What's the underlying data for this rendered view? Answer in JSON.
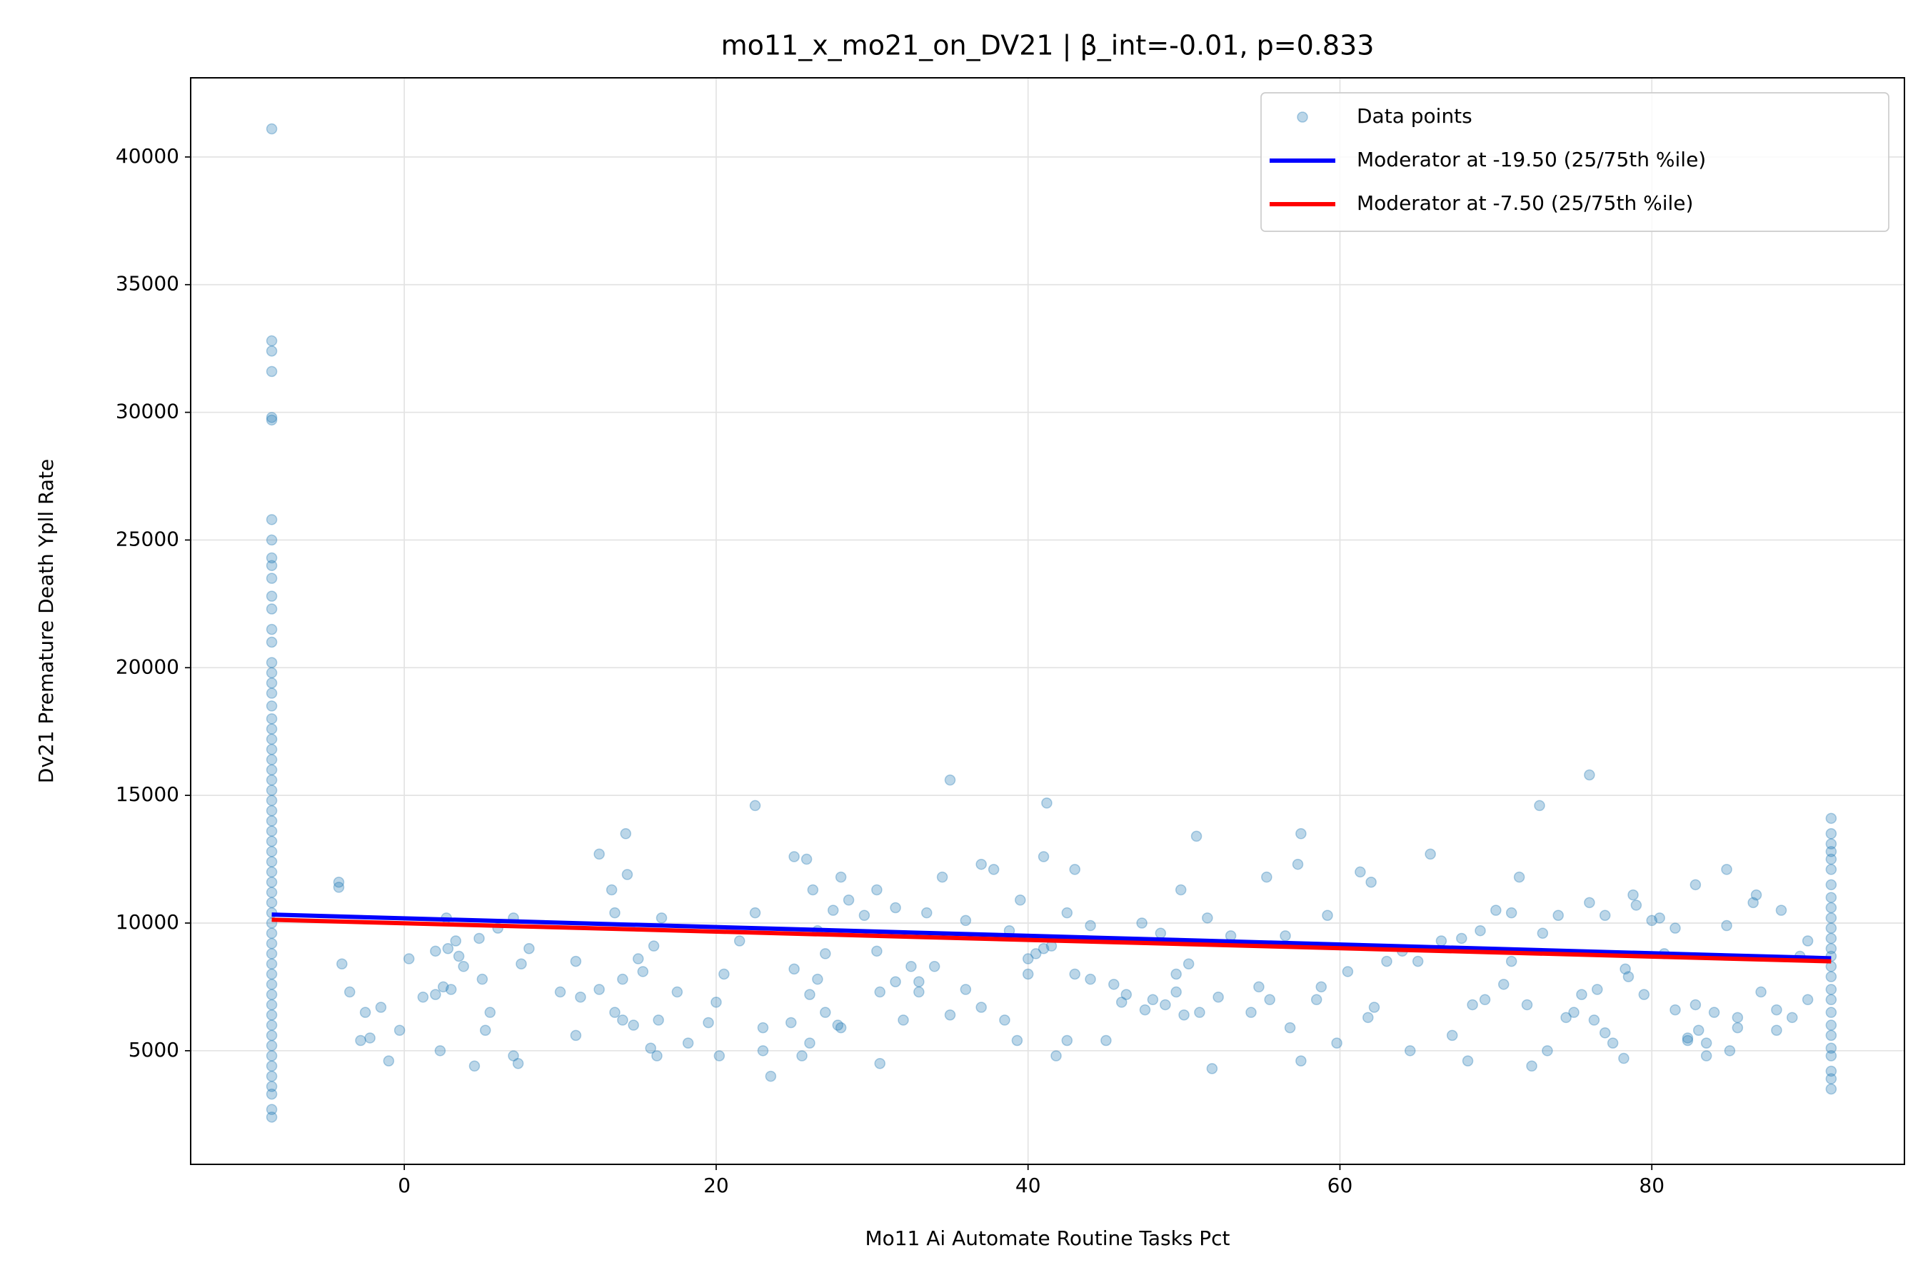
{
  "chart_data": {
    "type": "scatter",
    "title": "mo11_x_mo21_on_DV21 | β_int=-0.01, p=0.833",
    "x_label": "Mo11 Ai Automate Routine Tasks Pct",
    "y_label": "Dv21 Premature Death Ypll Rate",
    "xlim": [
      -13.7,
      96.2
    ],
    "ylim": [
      550,
      43100
    ],
    "xticks": [
      0,
      20,
      40,
      60,
      80
    ],
    "yticks": [
      5000,
      10000,
      15000,
      20000,
      25000,
      30000,
      35000,
      40000
    ],
    "grid": true,
    "legend": "upper right",
    "series": [
      {
        "name": "Data points",
        "type": "scatter",
        "color": "#1f77b4",
        "x": [
          -8.5,
          -8.5,
          -8.5,
          -8.5,
          -8.5,
          -8.5,
          -8.5,
          -8.5,
          -8.5,
          -8.5,
          -8.5,
          -8.5,
          -8.5,
          -8.5,
          -8.5,
          -8.5,
          -8.5,
          -8.5,
          -8.5,
          -8.5,
          -8.5,
          -8.5,
          -8.5,
          -8.5,
          -8.5,
          -8.5,
          -8.5,
          -8.5,
          -8.5,
          -8.5,
          -8.5,
          -8.5,
          -8.5,
          -8.5,
          -8.5,
          -8.5,
          -8.5,
          -8.5,
          -8.5,
          -8.5,
          -8.5,
          -8.5,
          -8.5,
          -8.5,
          -8.5,
          -8.5,
          -8.5,
          -8.5,
          -8.5,
          -8.5,
          -8.5,
          -8.5,
          -8.5,
          -8.5,
          -8.5,
          -8.5,
          -8.5,
          -8.5,
          -8.5,
          -8.5,
          -4.2,
          -4.2,
          -4,
          -3.5,
          -2.8,
          -2.5,
          -2.2,
          -1.5,
          -1,
          -0.3,
          0.3,
          1.2,
          2,
          2,
          2.3,
          2.5,
          2.7,
          2.8,
          3,
          3.3,
          3.5,
          3.8,
          4.5,
          4.8,
          5,
          5.2,
          5.5,
          6,
          7,
          7,
          7.3,
          7.5,
          8,
          10,
          11,
          11,
          11.3,
          12.5,
          12.5,
          13.3,
          13.5,
          13.5,
          14,
          14,
          14.2,
          14.3,
          14.7,
          15,
          15.3,
          15.8,
          16,
          16.2,
          16.3,
          16.5,
          17.5,
          18.2,
          19.5,
          20,
          20.2,
          20.5,
          21.5,
          22.5,
          22.5,
          23,
          23,
          23.5,
          24.8,
          25,
          25,
          25.5,
          25.8,
          26,
          26,
          26.2,
          26.5,
          26.5,
          27,
          27,
          27.5,
          27.8,
          28,
          28,
          28.5,
          29.5,
          30.3,
          30.3,
          30.5,
          30.5,
          31.5,
          31.5,
          32,
          32.5,
          33,
          33,
          33.5,
          34,
          34.5,
          35,
          35,
          36,
          36,
          37,
          37,
          37.8,
          38.5,
          38.8,
          39.3,
          39.5,
          40,
          40,
          40.5,
          41,
          41,
          41.2,
          41.5,
          41.8,
          42.5,
          42.5,
          43,
          43,
          44,
          44,
          45,
          45.5,
          46,
          46.3,
          47.3,
          47.5,
          48,
          48.5,
          48.8,
          49.5,
          49.5,
          49.8,
          50,
          50.3,
          50.8,
          51,
          51.5,
          51.8,
          52.2,
          53,
          54.3,
          54.8,
          55.3,
          55.5,
          56.5,
          56.8,
          57.3,
          57.5,
          57.5,
          58.5,
          58.8,
          59.2,
          59.8,
          60.5,
          61.3,
          61.8,
          62,
          62.2,
          63,
          64,
          64.5,
          65,
          65.8,
          66.5,
          67.2,
          67.8,
          68.2,
          68.5,
          69,
          69.3,
          70,
          70.5,
          71,
          71,
          71.5,
          72,
          72.3,
          72.8,
          73,
          73.3,
          74,
          74.5,
          75,
          75.5,
          76,
          76,
          76.3,
          76.5,
          77,
          77,
          77.5,
          78.2,
          78.3,
          78.5,
          78.8,
          79,
          79.5,
          80,
          80.5,
          80.8,
          81.5,
          81.5,
          82.3,
          82.3,
          82.8,
          82.8,
          83,
          83.5,
          83.5,
          84,
          84.8,
          84.8,
          85,
          85.5,
          85.5,
          86.5,
          86.7,
          87,
          88,
          88,
          88.3,
          89,
          89.5,
          90,
          90,
          91.5,
          91.5,
          91.5,
          91.5,
          91.5,
          91.5,
          91.5,
          91.5,
          91.5,
          91.5,
          91.5,
          91.5,
          91.5,
          91.5,
          91.5,
          91.5,
          91.5,
          91.5,
          91.5,
          91.5,
          91.5,
          91.5,
          91.5,
          91.5,
          91.5,
          91.5
        ],
        "values": [
          41100,
          32800,
          32400,
          31600,
          29800,
          29700,
          25800,
          25000,
          24300,
          24000,
          23500,
          22800,
          22300,
          21500,
          21000,
          20200,
          19800,
          19400,
          19000,
          18500,
          18000,
          17600,
          17200,
          16800,
          16400,
          16000,
          15600,
          15200,
          14800,
          14400,
          14000,
          13600,
          13200,
          12800,
          12400,
          12000,
          11600,
          11200,
          10800,
          10400,
          10000,
          9600,
          9200,
          8800,
          8400,
          8000,
          7600,
          7200,
          6800,
          6400,
          6000,
          5600,
          5200,
          4800,
          4400,
          4000,
          3600,
          3300,
          2700,
          2400,
          11600,
          11400,
          8400,
          7300,
          5400,
          6500,
          5500,
          6700,
          4600,
          5800,
          8600,
          7100,
          7200,
          8900,
          5000,
          7500,
          10200,
          9000,
          7400,
          9300,
          8700,
          8300,
          4400,
          9400,
          7800,
          5800,
          6500,
          9800,
          10200,
          4800,
          4500,
          8400,
          9000,
          7300,
          8500,
          5600,
          7100,
          12700,
          7400,
          11300,
          6500,
          10400,
          6200,
          7800,
          13500,
          11900,
          6000,
          8600,
          8100,
          5100,
          9100,
          4800,
          6200,
          10200,
          7300,
          5300,
          6100,
          6900,
          4800,
          8000,
          9300,
          14600,
          10400,
          5900,
          5000,
          4000,
          6100,
          12600,
          8200,
          4800,
          12500,
          5300,
          7200,
          11300,
          9700,
          7800,
          8800,
          6500,
          10500,
          6000,
          11800,
          5900,
          10900,
          10300,
          11300,
          8900,
          7300,
          4500,
          7700,
          10600,
          6200,
          8300,
          7700,
          7300,
          10400,
          8300,
          11800,
          15600,
          6400,
          10100,
          7400,
          12300,
          6700,
          12100,
          6200,
          9700,
          5400,
          10900,
          8600,
          8000,
          8800,
          12600,
          9000,
          14700,
          9100,
          4800,
          5400,
          10400,
          12100,
          8000,
          7800,
          9900,
          5400,
          7600,
          6900,
          7200,
          10000,
          6600,
          7000,
          9600,
          6800,
          7300,
          8000,
          11300,
          6400,
          8400,
          13400,
          6500,
          10200,
          4300,
          7100,
          9500,
          6500,
          7500,
          11800,
          7000,
          9500,
          5900,
          12300,
          13500,
          4600,
          7000,
          7500,
          10300,
          5300,
          8100,
          12000,
          6300,
          11600,
          6700,
          8500,
          8900,
          5000,
          8500,
          12700,
          9300,
          5600,
          9400,
          4600,
          6800,
          9700,
          7000,
          10500,
          7600,
          8500,
          10400,
          11800,
          6800,
          4400,
          14600,
          9600,
          5000,
          10300,
          6300,
          6500,
          7200,
          15800,
          10800,
          6200,
          7400,
          10300,
          5700,
          5300,
          4700,
          8200,
          7900,
          11100,
          10700,
          7200,
          10100,
          10200,
          8800,
          9800,
          6600,
          5400,
          5500,
          6800,
          11500,
          5800,
          5300,
          4800,
          6500,
          9900,
          12100,
          5000,
          6300,
          5900,
          10800,
          11100,
          7300,
          6600,
          5800,
          10500,
          6300,
          8700,
          9300,
          7000,
          14100,
          13500,
          13100,
          12800,
          12500,
          12100,
          11500,
          11000,
          10600,
          10200,
          9800,
          9400,
          9000,
          8700,
          8300,
          7900,
          7400,
          7000,
          6500,
          6000,
          5600,
          5100,
          4800,
          4200,
          3900,
          3500
        ]
      },
      {
        "name": "Moderator at -19.50 (25/75th %ile)",
        "type": "line",
        "color": "#0000ff",
        "x": [
          -8.5,
          91.5
        ],
        "values": [
          10330,
          8620
        ]
      },
      {
        "name": "Moderator at -7.50 (25/75th %ile)",
        "type": "line",
        "color": "#ff0000",
        "x": [
          -8.5,
          91.5
        ],
        "values": [
          10130,
          8500
        ]
      }
    ]
  }
}
